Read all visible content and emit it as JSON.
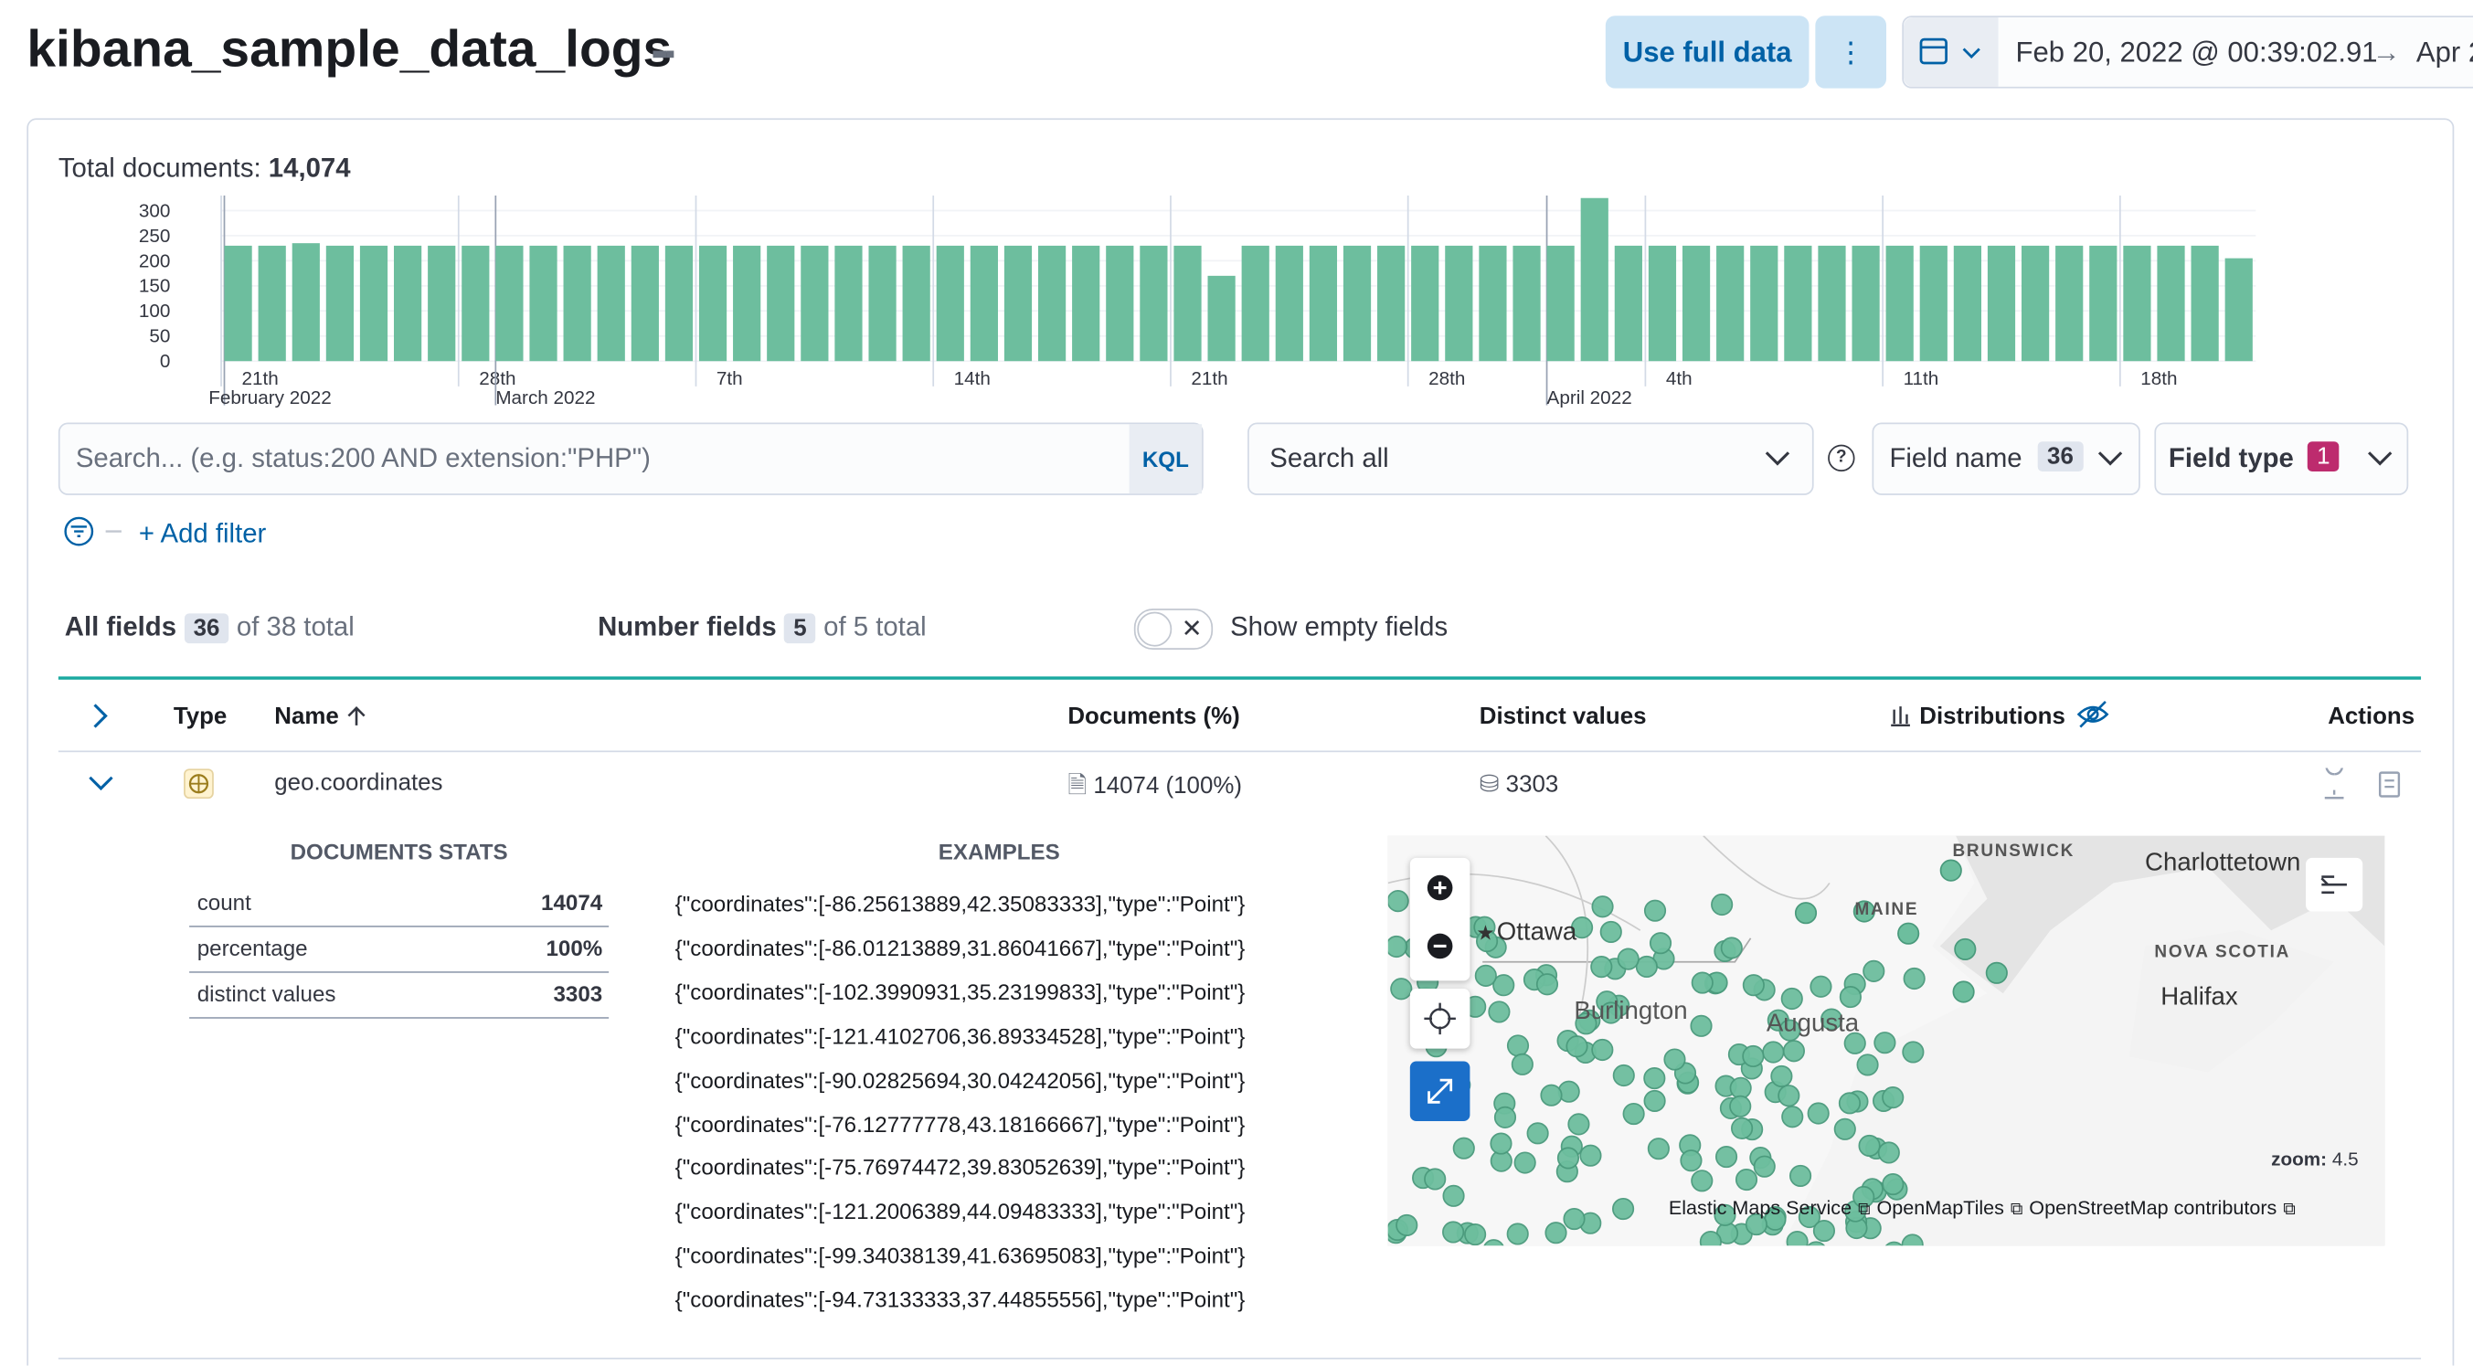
{
  "header": {
    "title": "kibana_sample_data_logs",
    "use_full_data": "Use full data",
    "start_date": "Feb 20, 2022 @ 00:39:02.91",
    "end_date": "Apr 2"
  },
  "summary": {
    "label": "Total documents:",
    "value": "14,074"
  },
  "histogram": {
    "type": "bar",
    "color": "#6dbe9e",
    "values": [
      230,
      230,
      235,
      230,
      230,
      230,
      230,
      230,
      230,
      230,
      230,
      230,
      230,
      230,
      230,
      230,
      230,
      230,
      230,
      230,
      230,
      230,
      230,
      230,
      230,
      230,
      230,
      230,
      230,
      170,
      230,
      230,
      230,
      230,
      230,
      230,
      230,
      230,
      230,
      230,
      325,
      230,
      230,
      230,
      230,
      230,
      230,
      230,
      230,
      230,
      230,
      230,
      230,
      230,
      230,
      230,
      230,
      230,
      230,
      205
    ],
    "ylim": [
      0,
      330
    ],
    "yticks": [
      0,
      50,
      100,
      150,
      200,
      250,
      300
    ],
    "day_labels": [
      "21th",
      null,
      null,
      null,
      null,
      null,
      null,
      "28th",
      null,
      null,
      null,
      null,
      null,
      null,
      "7th",
      null,
      null,
      null,
      null,
      null,
      null,
      "14th",
      null,
      null,
      null,
      null,
      null,
      null,
      "21th",
      null,
      null,
      null,
      null,
      null,
      null,
      "28th",
      null,
      null,
      null,
      null,
      null,
      null,
      "4th",
      null,
      null,
      null,
      null,
      null,
      null,
      "11th",
      null,
      null,
      null,
      null,
      null,
      null,
      "18th",
      null,
      null,
      null
    ],
    "month_labels": [
      "February 2022",
      null,
      null,
      null,
      null,
      null,
      null,
      null,
      "March 2022",
      null,
      null,
      null,
      null,
      null,
      null,
      null,
      null,
      null,
      null,
      null,
      null,
      null,
      null,
      null,
      null,
      null,
      null,
      null,
      null,
      null,
      null,
      null,
      null,
      null,
      null,
      null,
      null,
      null,
      null,
      "April 2022",
      null,
      null,
      null,
      null,
      null,
      null,
      null,
      null,
      null,
      null,
      null,
      null,
      null,
      null,
      null,
      null,
      null,
      null,
      null,
      null
    ]
  },
  "search": {
    "placeholder": "Search... (e.g. status:200 AND extension:\"PHP\")",
    "language": "KQL",
    "scope": "Search all",
    "field_name": "Field name",
    "field_name_count": "36",
    "field_type": "Field type",
    "field_type_count": "1",
    "add_filter": "+ Add filter"
  },
  "field_stats": {
    "all_fields": "All fields",
    "all_count": "36",
    "all_total": "of 38 total",
    "number_fields": "Number fields",
    "number_count": "5",
    "number_total": "of 5 total",
    "show_empty": "Show empty fields"
  },
  "table": {
    "columns": [
      "Type",
      "Name",
      "Documents (%)",
      "Distinct values",
      "Distributions",
      "Actions"
    ],
    "rows": [
      {
        "name": "geo.coordinates",
        "documents": "14074 (100%)",
        "distinct": "3303"
      }
    ]
  },
  "details": {
    "stats_title": "DOCUMENTS STATS",
    "stats": [
      [
        "count",
        "14074"
      ],
      [
        "percentage",
        "100%"
      ],
      [
        "distinct values",
        "3303"
      ]
    ],
    "examples_title": "EXAMPLES",
    "examples": [
      "{\"coordinates\":[-86.25613889,42.35083333],\"type\":\"Point\"}",
      "{\"coordinates\":[-86.01213889,31.86041667],\"type\":\"Point\"}",
      "{\"coordinates\":[-102.3990931,35.23199833],\"type\":\"Point\"}",
      "{\"coordinates\":[-121.4102706,36.89334528],\"type\":\"Point\"}",
      "{\"coordinates\":[-90.02825694,30.04242056],\"type\":\"Point\"}",
      "{\"coordinates\":[-76.12777778,43.18166667],\"type\":\"Point\"}",
      "{\"coordinates\":[-75.76974472,39.83052639],\"type\":\"Point\"}",
      "{\"coordinates\":[-121.2006389,44.09483333],\"type\":\"Point\"}",
      "{\"coordinates\":[-99.34038139,41.63695083],\"type\":\"Point\"}",
      "{\"coordinates\":[-94.73133333,37.44855556],\"type\":\"Point\"}"
    ]
  },
  "map": {
    "labels": [
      "BRUNSWICK",
      "Charlottetown",
      "Ottawa",
      "MAINE",
      "NOVA SCOTIA",
      "Halifax",
      "Burlington",
      "Augusta"
    ],
    "zoom_label": "zoom:",
    "zoom": "4.5",
    "attribution": [
      "Elastic Maps Service",
      "OpenMapTiles",
      "OpenStreetMap contributors"
    ]
  }
}
